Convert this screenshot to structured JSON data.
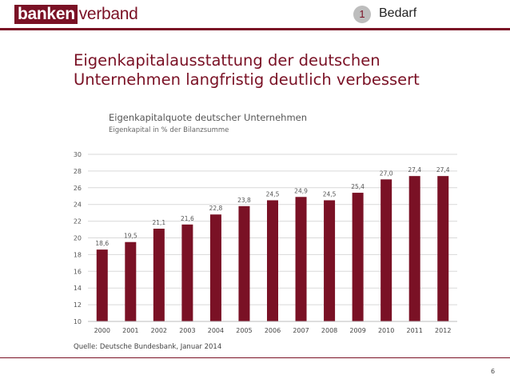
{
  "header": {
    "logo_part1": "banken",
    "logo_part2": "verband",
    "section_number": "1",
    "section_label": "Bedarf"
  },
  "title_line1": "Eigenkapitalausstattung der deutschen",
  "title_line2": "Unternehmen langfristig deutlich verbessert",
  "chart_data": {
    "type": "bar",
    "title": "Eigenkapitalquote deutscher Unternehmen",
    "subtitle": "Eigenkapital in % der Bilanzsumme",
    "categories": [
      "2000",
      "2001",
      "2002",
      "2003",
      "2004",
      "2005",
      "2006",
      "2007",
      "2008",
      "2009",
      "2010",
      "2011",
      "2012"
    ],
    "values": [
      18.6,
      19.5,
      21.1,
      21.6,
      22.8,
      23.8,
      24.5,
      24.9,
      24.5,
      25.4,
      27.0,
      27.4,
      27.4
    ],
    "value_labels": [
      "18,6",
      "19,5",
      "21,1",
      "21,6",
      "22,8",
      "23,8",
      "24,5",
      "24,9",
      "24,5",
      "25,4",
      "27,0",
      "27,4",
      "27,4"
    ],
    "ylim": [
      10,
      30
    ],
    "yticks": [
      "10",
      "12",
      "14",
      "16",
      "18",
      "20",
      "22",
      "24",
      "26",
      "28",
      "30"
    ],
    "grid": true,
    "bar_color": "#7a1125"
  },
  "source": "Quelle: Deutsche Bundesbank, Januar 2014",
  "page_number": "6"
}
